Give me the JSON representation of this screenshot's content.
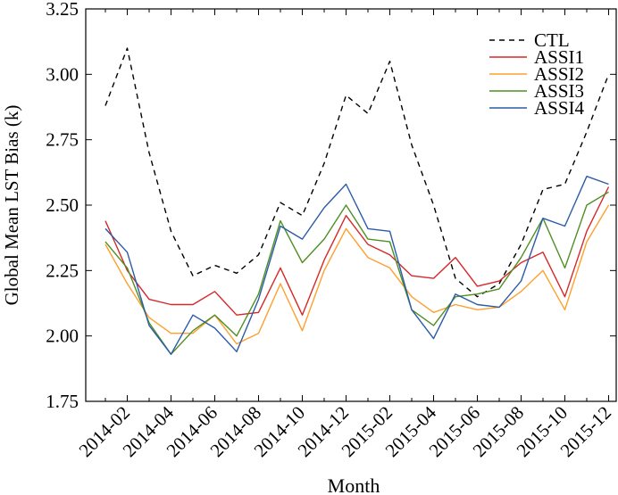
{
  "chart_data": {
    "type": "line",
    "xlabel": "Month",
    "ylabel": "Global Mean LST Bias (k)",
    "ylim": [
      1.75,
      3.25
    ],
    "yticks": [
      "1.75",
      "2.00",
      "2.25",
      "2.50",
      "2.75",
      "3.00",
      "3.25"
    ],
    "xtick_labels": [
      "2014-02",
      "2014-04",
      "2014-06",
      "2014-08",
      "2014-10",
      "2014-12",
      "2015-02",
      "2015-04",
      "2015-06",
      "2015-08",
      "2015-10",
      "2015-12"
    ],
    "x": [
      "2014-01",
      "2014-02",
      "2014-03",
      "2014-04",
      "2014-05",
      "2014-06",
      "2014-07",
      "2014-08",
      "2014-09",
      "2014-10",
      "2014-11",
      "2014-12",
      "2015-01",
      "2015-02",
      "2015-03",
      "2015-04",
      "2015-05",
      "2015-06",
      "2015-07",
      "2015-08",
      "2015-09",
      "2015-10",
      "2015-11",
      "2015-12"
    ],
    "grid": false,
    "legend_position": "top-right",
    "series": [
      {
        "name": "CTL",
        "color": "#000000",
        "dash": true,
        "values": [
          2.88,
          3.1,
          2.7,
          2.4,
          2.23,
          2.27,
          2.24,
          2.31,
          2.51,
          2.46,
          2.66,
          2.92,
          2.85,
          3.05,
          2.73,
          2.5,
          2.22,
          2.15,
          2.2,
          2.35,
          2.56,
          2.58,
          2.78,
          3.0
        ]
      },
      {
        "name": "ASSI1",
        "color": "#d62728",
        "dash": false,
        "values": [
          2.44,
          2.25,
          2.14,
          2.12,
          2.12,
          2.17,
          2.08,
          2.09,
          2.26,
          2.08,
          2.29,
          2.46,
          2.35,
          2.31,
          2.23,
          2.22,
          2.3,
          2.19,
          2.21,
          2.28,
          2.32,
          2.15,
          2.4,
          2.57
        ]
      },
      {
        "name": "ASSI2",
        "color": "#ff9f2e",
        "dash": false,
        "values": [
          2.35,
          2.2,
          2.07,
          2.01,
          2.01,
          2.08,
          1.97,
          2.01,
          2.2,
          2.02,
          2.25,
          2.41,
          2.3,
          2.26,
          2.15,
          2.09,
          2.12,
          2.1,
          2.11,
          2.17,
          2.25,
          2.1,
          2.36,
          2.5
        ]
      },
      {
        "name": "ASSI3",
        "color": "#4f8f23",
        "dash": false,
        "values": [
          2.36,
          2.26,
          2.05,
          1.93,
          2.02,
          2.08,
          2.0,
          2.16,
          2.44,
          2.28,
          2.37,
          2.5,
          2.37,
          2.36,
          2.1,
          2.04,
          2.15,
          2.16,
          2.18,
          2.3,
          2.45,
          2.26,
          2.5,
          2.55
        ]
      },
      {
        "name": "ASSI4",
        "color": "#2a5ca8",
        "dash": false,
        "values": [
          2.41,
          2.32,
          2.04,
          1.93,
          2.08,
          2.03,
          1.94,
          2.14,
          2.42,
          2.37,
          2.49,
          2.58,
          2.41,
          2.4,
          2.1,
          1.99,
          2.16,
          2.12,
          2.11,
          2.21,
          2.45,
          2.42,
          2.61,
          2.58
        ]
      }
    ]
  }
}
